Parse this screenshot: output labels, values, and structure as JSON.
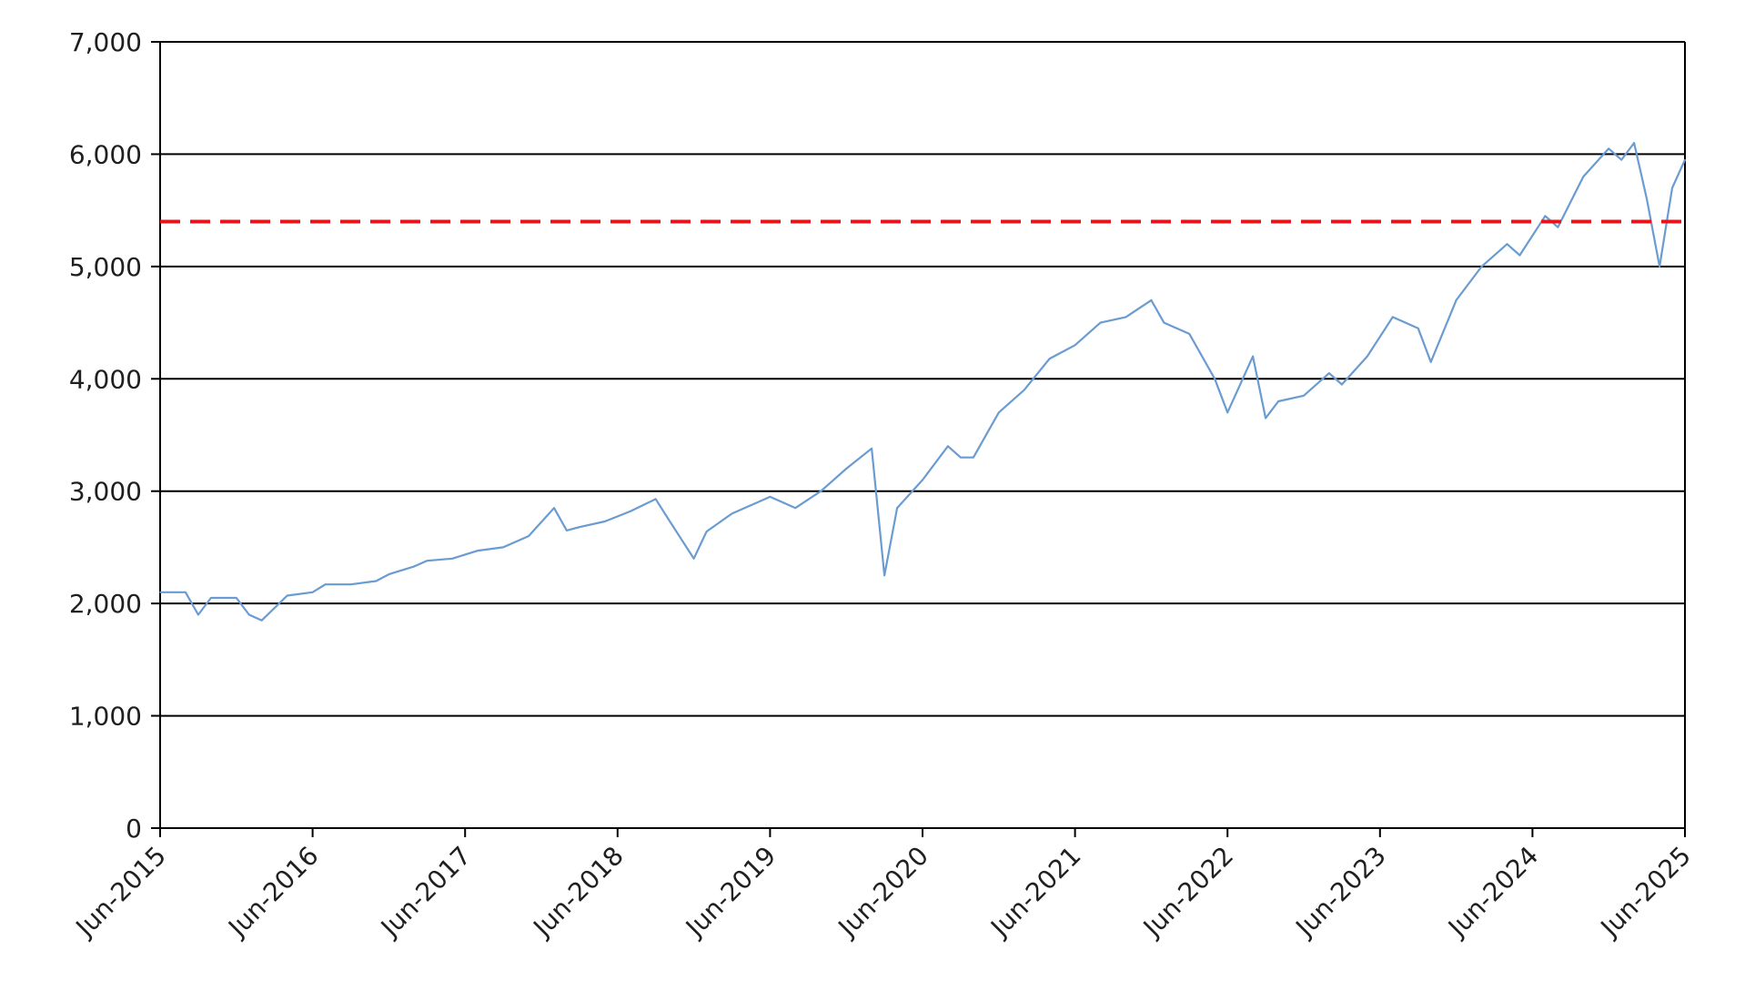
{
  "chart_data": {
    "type": "line",
    "title": "",
    "xlabel": "",
    "ylabel": "",
    "ylim": [
      0,
      7000
    ],
    "xlim": [
      "2015-06",
      "2025-06"
    ],
    "yticks": [
      0,
      1000,
      2000,
      3000,
      4000,
      5000,
      6000,
      7000
    ],
    "ytick_labels": [
      "0",
      "1,000",
      "2,000",
      "3,000",
      "4,000",
      "5,000",
      "6,000",
      "7,000"
    ],
    "xtick_labels": [
      "Jun-2015",
      "Jun-2016",
      "Jun-2017",
      "Jun-2018",
      "Jun-2019",
      "Jun-2020",
      "Jun-2021",
      "Jun-2022",
      "Jun-2023",
      "Jun-2024",
      "Jun-2025"
    ],
    "grid": "horizontal",
    "legend": "none",
    "reference_line": {
      "value": 5400,
      "color": "#e8141c",
      "style": "dashed"
    },
    "series": [
      {
        "color": "#6a9bd1",
        "x": [
          "2015-06",
          "2015-08",
          "2015-09",
          "2015-10",
          "2015-12",
          "2016-01",
          "2016-02",
          "2016-04",
          "2016-06",
          "2016-07",
          "2016-09",
          "2016-11",
          "2016-12",
          "2017-02",
          "2017-03",
          "2017-05",
          "2017-07",
          "2017-09",
          "2017-11",
          "2018-01",
          "2018-02",
          "2018-03",
          "2018-05",
          "2018-07",
          "2018-09",
          "2018-10",
          "2018-12",
          "2019-01",
          "2019-03",
          "2019-05",
          "2019-06",
          "2019-08",
          "2019-10",
          "2019-12",
          "2020-02",
          "2020-03",
          "2020-04",
          "2020-06",
          "2020-08",
          "2020-09",
          "2020-10",
          "2020-12",
          "2021-02",
          "2021-04",
          "2021-06",
          "2021-08",
          "2021-10",
          "2021-12",
          "2022-01",
          "2022-03",
          "2022-05",
          "2022-06",
          "2022-08",
          "2022-09",
          "2022-10",
          "2022-12",
          "2023-02",
          "2023-03",
          "2023-05",
          "2023-07",
          "2023-09",
          "2023-10",
          "2023-12",
          "2024-02",
          "2024-04",
          "2024-05",
          "2024-07",
          "2024-08",
          "2024-10",
          "2024-12",
          "2025-01",
          "2025-02",
          "2025-03",
          "2025-04",
          "2025-05",
          "2025-06"
        ],
        "y": [
          2100,
          2100,
          1900,
          2050,
          2050,
          1900,
          1850,
          2070,
          2100,
          2170,
          2170,
          2200,
          2260,
          2330,
          2380,
          2400,
          2470,
          2500,
          2600,
          2850,
          2650,
          2680,
          2730,
          2820,
          2930,
          2750,
          2400,
          2640,
          2800,
          2900,
          2950,
          2850,
          3000,
          3200,
          3380,
          2250,
          2850,
          3100,
          3400,
          3300,
          3300,
          3700,
          3900,
          4180,
          4300,
          4500,
          4550,
          4700,
          4500,
          4400,
          4000,
          3700,
          4200,
          3650,
          3800,
          3850,
          4050,
          3950,
          4200,
          4550,
          4450,
          4150,
          4700,
          5000,
          5200,
          5100,
          5450,
          5350,
          5800,
          6050,
          5950,
          6100,
          5600,
          5000,
          5700,
          5950
        ]
      }
    ]
  }
}
